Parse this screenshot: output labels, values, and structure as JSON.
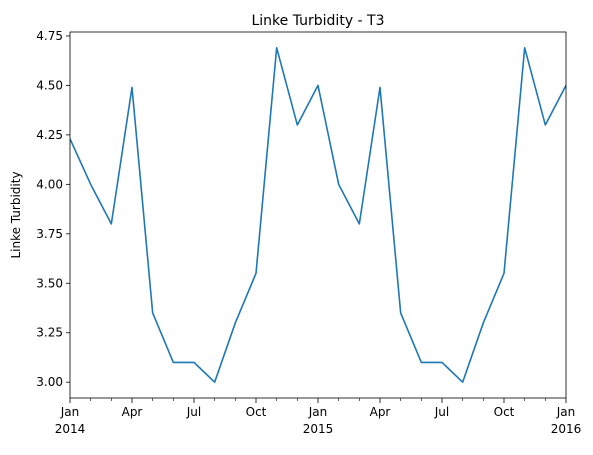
{
  "chart_data": {
    "type": "line",
    "title": "Linke Turbidity - T3",
    "xlabel": "",
    "ylabel": "Linke Turbidity",
    "ylim": [
      2.92,
      4.77
    ],
    "grid": false,
    "legend": "none",
    "series_color": "#1f77b4",
    "x": [
      "2014-01-01",
      "2014-02-01",
      "2014-03-01",
      "2014-04-01",
      "2014-05-01",
      "2014-06-01",
      "2014-07-01",
      "2014-08-01",
      "2014-09-01",
      "2014-10-01",
      "2014-11-01",
      "2014-12-01",
      "2015-01-01",
      "2015-02-01",
      "2015-03-01",
      "2015-04-01",
      "2015-05-01",
      "2015-06-01",
      "2015-07-01",
      "2015-08-01",
      "2015-09-01",
      "2015-10-01",
      "2015-11-01",
      "2015-12-01",
      "2016-01-01"
    ],
    "series": [
      {
        "values": [
          4.23,
          4.0,
          3.8,
          4.49,
          3.35,
          3.1,
          3.1,
          3.0,
          3.3,
          3.55,
          4.69,
          4.3,
          4.5,
          4.0,
          3.8,
          4.49,
          3.35,
          3.1,
          3.1,
          3.0,
          3.3,
          3.55,
          4.69,
          4.3,
          4.5
        ]
      }
    ],
    "yticks": [
      "3.00",
      "3.25",
      "3.50",
      "3.75",
      "4.00",
      "4.25",
      "4.50",
      "4.75"
    ],
    "xticks_major": [
      {
        "month": "Jan",
        "year": "2014"
      },
      {
        "month": "Apr",
        "year": ""
      },
      {
        "month": "Jul",
        "year": ""
      },
      {
        "month": "Oct",
        "year": ""
      },
      {
        "month": "Jan",
        "year": "2015"
      },
      {
        "month": "Apr",
        "year": ""
      },
      {
        "month": "Jul",
        "year": ""
      },
      {
        "month": "Oct",
        "year": ""
      },
      {
        "month": "Jan",
        "year": "2016"
      }
    ]
  }
}
